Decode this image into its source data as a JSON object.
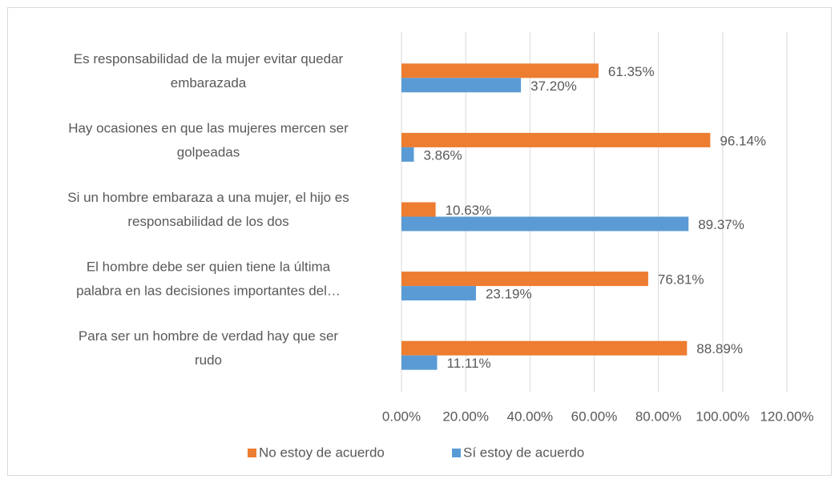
{
  "chart_data": {
    "type": "bar",
    "orientation": "horizontal",
    "categories": [
      [
        "Es responsabilidad de la mujer evitar quedar",
        "embarazada"
      ],
      [
        "Hay ocasiones en que las mujeres mercen ser",
        "golpeadas"
      ],
      [
        "Si un hombre embaraza a una mujer, el hijo es",
        "responsabilidad de los dos"
      ],
      [
        "El hombre debe ser quien tiene la última",
        "palabra en las decisiones importantes del…"
      ],
      [
        "Para ser un hombre de verdad hay que ser",
        "rudo"
      ]
    ],
    "series": [
      {
        "name": "No estoy de acuerdo",
        "color": "#ed7d31",
        "values": [
          61.35,
          96.14,
          10.63,
          76.81,
          88.89
        ],
        "value_labels": [
          "61.35%",
          "96.14%",
          "10.63%",
          "76.81%",
          "88.89%"
        ]
      },
      {
        "name": "Sí estoy de acuerdo",
        "color": "#5b9bd5",
        "values": [
          37.2,
          3.86,
          89.37,
          23.19,
          11.11
        ],
        "value_labels": [
          "37.20%",
          "3.86%",
          "89.37%",
          "23.19%",
          "11.11%"
        ]
      }
    ],
    "xlim": [
      0,
      120
    ],
    "xticks": [
      {
        "value": 0,
        "label": "0.00%"
      },
      {
        "value": 20,
        "label": "20.00%"
      },
      {
        "value": 40,
        "label": "40.00%"
      },
      {
        "value": 60,
        "label": "60.00%"
      },
      {
        "value": 80,
        "label": "80.00%"
      },
      {
        "value": 100,
        "label": "100.00%"
      },
      {
        "value": 120,
        "label": "120.00%"
      }
    ],
    "grid": true,
    "legend": "bottom"
  }
}
